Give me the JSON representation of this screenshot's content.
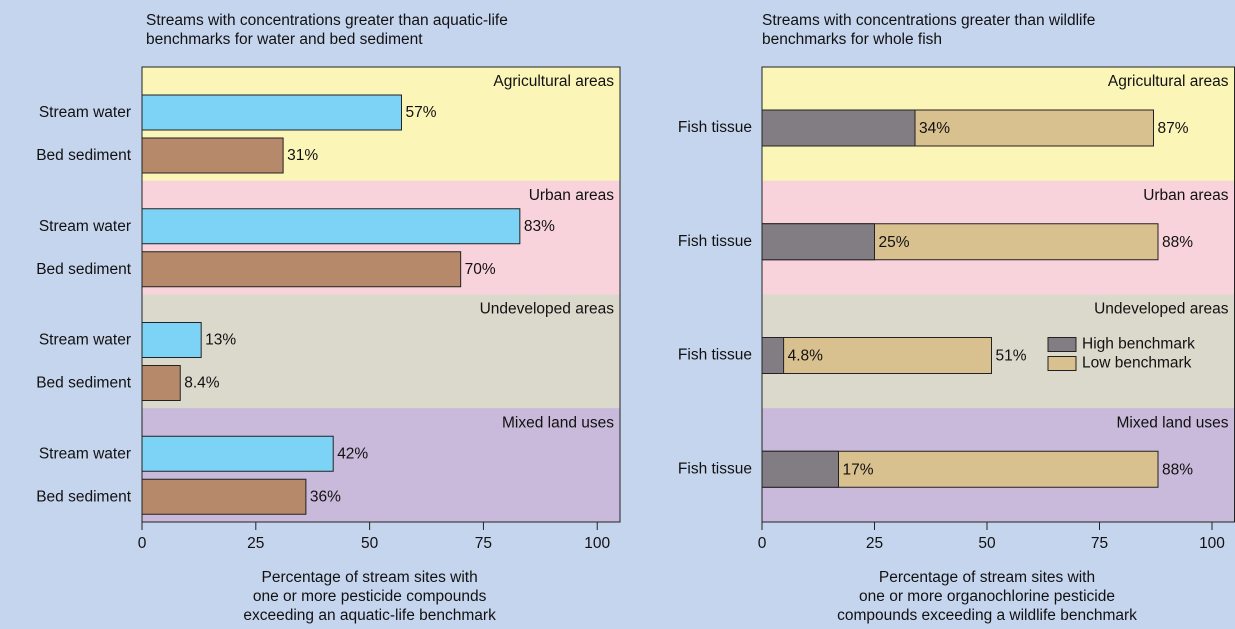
{
  "chart_data": [
    {
      "type": "bar",
      "orientation": "horizontal",
      "title": [
        "Streams with concentrations greater than aquatic-life",
        "benchmarks for water and bed sediment"
      ],
      "xlabel": [
        "Percentage of stream sites with",
        "one or more pesticide compounds",
        "exceeding an aquatic-life benchmark"
      ],
      "categories": [
        "Agricultural areas",
        "Urban areas",
        "Undeveloped areas",
        "Mixed land uses"
      ],
      "band_colors": [
        "#fbf6b8",
        "#f9d3dc",
        "#dbd9cc",
        "#c9b9da"
      ],
      "series": [
        {
          "name": "Stream water",
          "color": "#7dd3f5",
          "values": [
            57,
            83,
            13,
            42
          ],
          "value_labels": [
            "57%",
            "83%",
            "13%",
            "42%"
          ]
        },
        {
          "name": "Bed sediment",
          "color": "#b5896a",
          "values": [
            31,
            70,
            8.4,
            36
          ],
          "value_labels": [
            "31%",
            "70%",
            "8.4%",
            "36%"
          ]
        }
      ],
      "xlim": [
        0,
        105
      ],
      "xticks": [
        0,
        25,
        50,
        75,
        100
      ]
    },
    {
      "type": "overlap_bar",
      "orientation": "horizontal",
      "title": [
        "Streams with concentrations greater than wildlife",
        "benchmarks for whole fish"
      ],
      "xlabel": [
        "Percentage of stream sites with",
        "one or more organochlorine pesticide",
        "compounds exceeding a wildlife benchmark"
      ],
      "categories": [
        "Agricultural areas",
        "Urban areas",
        "Undeveloped areas",
        "Mixed land uses"
      ],
      "row_label": "Fish tissue",
      "band_colors": [
        "#fbf6b8",
        "#f9d3dc",
        "#dbd9cc",
        "#c9b9da"
      ],
      "series": [
        {
          "name": "High benchmark",
          "color": "#827d83",
          "values": [
            34,
            25,
            4.8,
            17
          ],
          "value_labels": [
            "34%",
            "25%",
            "4.8%",
            "17%"
          ]
        },
        {
          "name": "Low benchmark",
          "color": "#d9c08f",
          "values": [
            87,
            88,
            51,
            88
          ],
          "value_labels": [
            "87%",
            "88%",
            "51%",
            "88%"
          ]
        }
      ],
      "legend": true,
      "xlim": [
        0,
        105
      ],
      "xticks": [
        0,
        25,
        50,
        75,
        100
      ]
    }
  ]
}
